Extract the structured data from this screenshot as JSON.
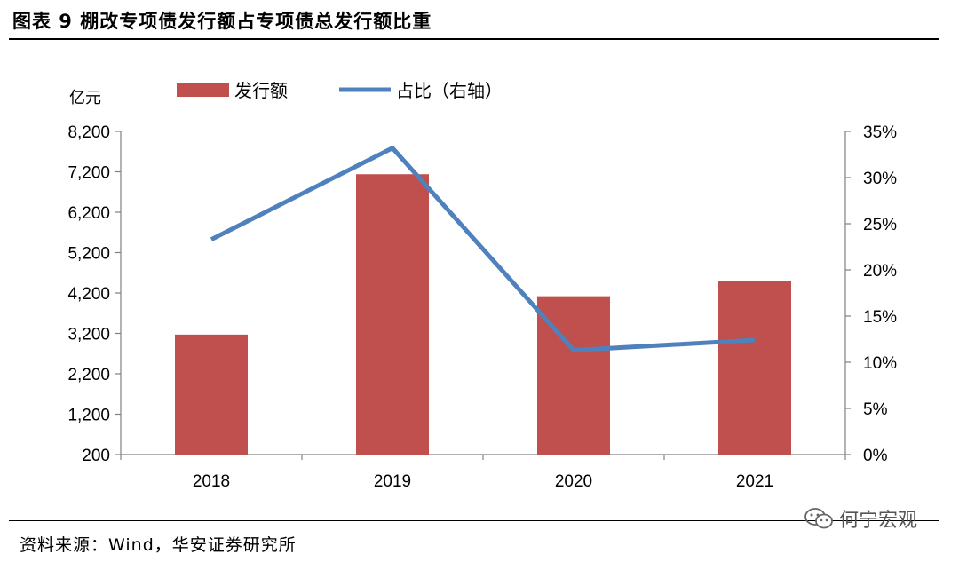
{
  "header": {
    "title": "图表 9 棚改专项债发行额占专项债总发行额比重"
  },
  "footer": {
    "source": "资料来源：Wind，华安证券研究所",
    "watermark": "何宁宏观",
    "watermark_icon": "wechat-icon"
  },
  "colors": {
    "bar": "#C0504D",
    "line": "#4F81BD",
    "axis": "#808080"
  },
  "chart_data": {
    "type": "bar",
    "categories": [
      "2018",
      "2019",
      "2020",
      "2021"
    ],
    "series": [
      {
        "name": "发行额",
        "type": "bar",
        "axis": "left",
        "values": [
          3170,
          7140,
          4120,
          4500
        ]
      },
      {
        "name": "占比（右轴）",
        "type": "line",
        "axis": "right",
        "values": [
          23.3,
          33.2,
          11.3,
          12.4
        ]
      }
    ],
    "y_left": {
      "unit_label": "亿元",
      "range": [
        200,
        8200
      ],
      "ticks": [
        200,
        1200,
        2200,
        3200,
        4200,
        5200,
        6200,
        7200,
        8200
      ],
      "tick_labels": [
        "200",
        "1,200",
        "2,200",
        "3,200",
        "4,200",
        "5,200",
        "6,200",
        "7,200",
        "8,200"
      ]
    },
    "y_right": {
      "range": [
        0,
        35
      ],
      "ticks": [
        0,
        5,
        10,
        15,
        20,
        25,
        30,
        35
      ],
      "tick_labels": [
        "0%",
        "5%",
        "10%",
        "15%",
        "20%",
        "25%",
        "30%",
        "35%"
      ]
    },
    "legend": {
      "placement": "top-center",
      "entries": [
        "发行额",
        "占比（右轴）"
      ]
    }
  }
}
